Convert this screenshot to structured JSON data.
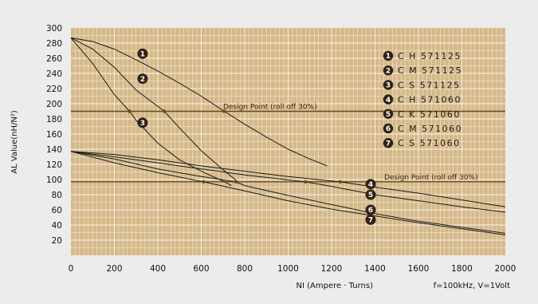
{
  "colors": {
    "background": "#ececec",
    "plot_bg": "#d6b989",
    "grid": "#ffffff",
    "curve": "#1a1a1a",
    "design_line": "#6b4a1e",
    "badge": "#2f2214"
  },
  "chart_data": {
    "type": "line",
    "ylabel": "AL Value(nH/N²)",
    "xlabel": "NI (Ampere · Turns)",
    "note": "f=100kHz, V=1Volt",
    "xlim": [
      0,
      2000
    ],
    "ylim": [
      0,
      300
    ],
    "x_ticks": [
      0,
      200,
      400,
      600,
      800,
      1000,
      1200,
      1400,
      1600,
      1800,
      2000
    ],
    "y_ticks": [
      20,
      40,
      60,
      80,
      100,
      120,
      140,
      160,
      180,
      200,
      220,
      240,
      260,
      280,
      300
    ],
    "grid": true,
    "design_points": [
      {
        "label": "Design Point (roll off 30%)",
        "y": 190
      },
      {
        "label": "Design Point (roll off 30%)",
        "y": 97
      }
    ],
    "series": [
      {
        "name": "C H 571125",
        "badge": "1",
        "x": [
          0,
          100,
          200,
          300,
          400,
          500,
          600,
          700,
          800,
          900,
          1000,
          1100,
          1180
        ],
        "y": [
          287,
          282,
          272,
          258,
          243,
          227,
          210,
          191,
          173,
          156,
          140,
          127,
          118
        ]
      },
      {
        "name": "C M 571125",
        "badge": "2",
        "x": [
          0,
          100,
          200,
          300,
          430,
          500,
          600,
          700,
          760
        ],
        "y": [
          287,
          272,
          248,
          218,
          190,
          168,
          138,
          113,
          99
        ]
      },
      {
        "name": "C S 571125",
        "badge": "3",
        "x": [
          0,
          100,
          200,
          270,
          300,
          400,
          500,
          600,
          700,
          740
        ],
        "y": [
          287,
          253,
          212,
          190,
          178,
          148,
          126,
          111,
          98,
          92
        ]
      },
      {
        "name": "C H 571060",
        "badge": "4",
        "x": [
          0,
          200,
          400,
          600,
          800,
          1000,
          1240,
          1400,
          1600,
          1800,
          2000
        ],
        "y": [
          137,
          133,
          126,
          118,
          111,
          104,
          97,
          90,
          82,
          73,
          64
        ]
      },
      {
        "name": "C K 571060",
        "badge": "5",
        "x": [
          0,
          200,
          400,
          600,
          800,
          1080,
          1200,
          1400,
          1600,
          1800,
          2000
        ],
        "y": [
          137,
          130,
          122,
          114,
          106,
          97,
          91,
          80,
          72,
          64,
          57
        ]
      },
      {
        "name": "C M 571060",
        "badge": "6",
        "x": [
          0,
          200,
          400,
          600,
          760,
          800,
          1000,
          1200,
          1400,
          1600,
          1800,
          2000
        ],
        "y": [
          137,
          127,
          114,
          104,
          97,
          92,
          79,
          67,
          55,
          45,
          37,
          29
        ]
      },
      {
        "name": "C S 571060",
        "badge": "7",
        "x": [
          0,
          200,
          400,
          610,
          800,
          1000,
          1200,
          1400,
          1600,
          1800,
          2000
        ],
        "y": [
          137,
          122,
          109,
          97,
          85,
          72,
          61,
          52,
          43,
          35,
          27
        ]
      }
    ],
    "legend_position": "top-right"
  }
}
